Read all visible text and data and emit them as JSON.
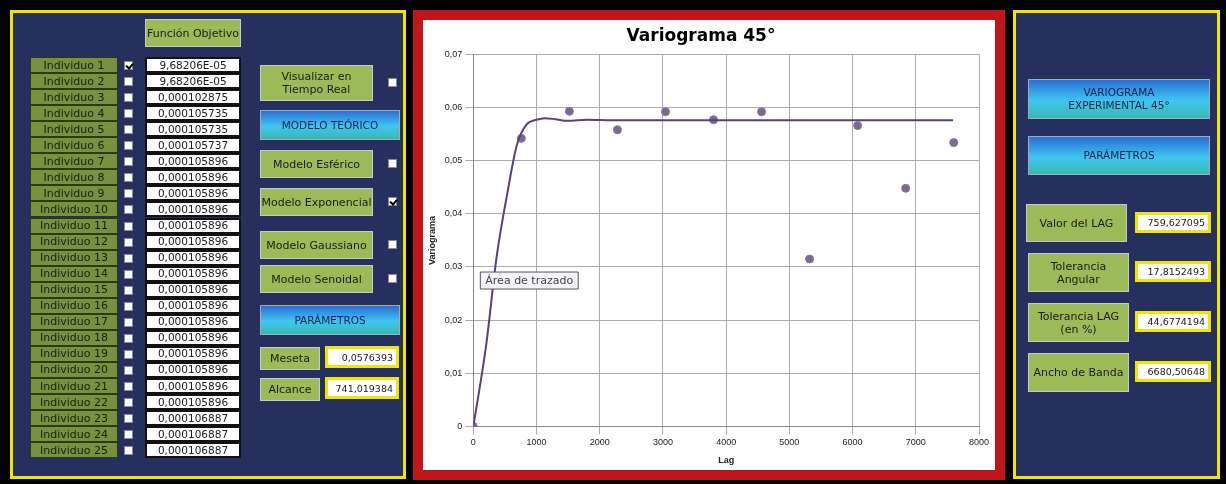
{
  "chart_data": [
    {
      "type": "other",
      "title": "Función Objetivo",
      "categories": [
        "Individuo 1",
        "Individuo 2",
        "Individuo 3",
        "Individuo 4",
        "Individuo 5",
        "Individuo 6",
        "Individuo 7",
        "Individuo 8",
        "Individuo 9",
        "Individuo 10",
        "Individuo 11",
        "Individuo 12",
        "Individuo 13",
        "Individuo 14",
        "Individuo 15",
        "Individuo 16",
        "Individuo 17",
        "Individuo 18",
        "Individuo 19",
        "Individuo 20",
        "Individuo 21",
        "Individuo 22",
        "Individuo 23",
        "Individuo 24",
        "Individuo 25"
      ],
      "annotations": [
        "9,68206E-05",
        "9,68206E-05",
        "0,000102875",
        "0,000105735",
        "0,000105735",
        "0,000105737",
        "0,000105896",
        "0,000105896",
        "0,000105896",
        "0,000105896",
        "0,000105896",
        "0,000105896",
        "0,000105896",
        "0,000105896",
        "0,000105896",
        "0,000105896",
        "0,000105896",
        "0,000105896",
        "0,000105896",
        "0,000105896",
        "0,000105896",
        "0,000105896",
        "0,000106887",
        "0,000106887",
        "0,000106887",
        "Visualizar en Tiempo Real",
        "MODELO TEÓRICO",
        "Modelo Esférico",
        "Modelo Exponencial",
        "Modelo Gaussiano",
        "Modelo Senoidal",
        "PARÁMETROS",
        "Meseta",
        "0,0576393",
        "Alcance",
        "741,019384"
      ]
    },
    {
      "type": "scatter",
      "title": "Variograma 45°",
      "xlabel": "Lag",
      "ylabel": "Variograma",
      "xlim": [
        0,
        8000
      ],
      "xticks": [
        0,
        1000,
        2000,
        3000,
        4000,
        5000,
        6000,
        7000,
        8000
      ],
      "ylim": [
        0,
        0.07
      ],
      "yticks": [
        0,
        {
          "value": 0.01,
          "label": "0,01"
        },
        {
          "value": 0.02,
          "label": "0,02"
        },
        {
          "value": 0.03,
          "label": "0,03"
        },
        {
          "value": 0.04,
          "label": "0,04"
        },
        {
          "value": 0.05,
          "label": "0,05"
        },
        {
          "value": 0.06,
          "label": "0,06"
        },
        {
          "value": 0.07,
          "label": "0,07"
        }
      ],
      "grid": true,
      "legend": false,
      "marker": "circle",
      "annotations": [
        "Área de trazado"
      ],
      "series": [
        {
          "type": "line",
          "marker": "none",
          "color": "#5b3f7f",
          "x": [
            0,
            200,
            370,
            540,
            690,
            840,
            1000,
            1130,
            1300,
            1490,
            1800,
            2200,
            7590
          ],
          "values": [
            0,
            0.015,
            0.032,
            0.044,
            0.053,
            0.0568,
            0.0577,
            0.058,
            0.0578,
            0.0575,
            0.0577,
            0.0576,
            0.0576
          ]
        },
        {
          "type": "scatter",
          "color": "#8064a2",
          "x": [
            0,
            760,
            1520,
            2280,
            3040,
            3800,
            4560,
            5320,
            6080,
            6840,
            7600
          ],
          "values": [
            0,
            0.0542,
            0.0593,
            0.0558,
            0.0592,
            0.0577,
            0.0592,
            0.0315,
            0.0566,
            0.0448,
            0.0534
          ]
        }
      ]
    },
    {
      "type": "other",
      "annotations": [
        "VARIOGRAMA EXPERIMENTAL 45°",
        "PARÁMETROS",
        "Valor del  LAG",
        "759,627095",
        "Tolerancia Angular",
        "17,8152493",
        "Tolerancia LAG (en %)",
        "44,6774194",
        "Ancho de Banda",
        "6680,50648"
      ]
    }
  ]
}
